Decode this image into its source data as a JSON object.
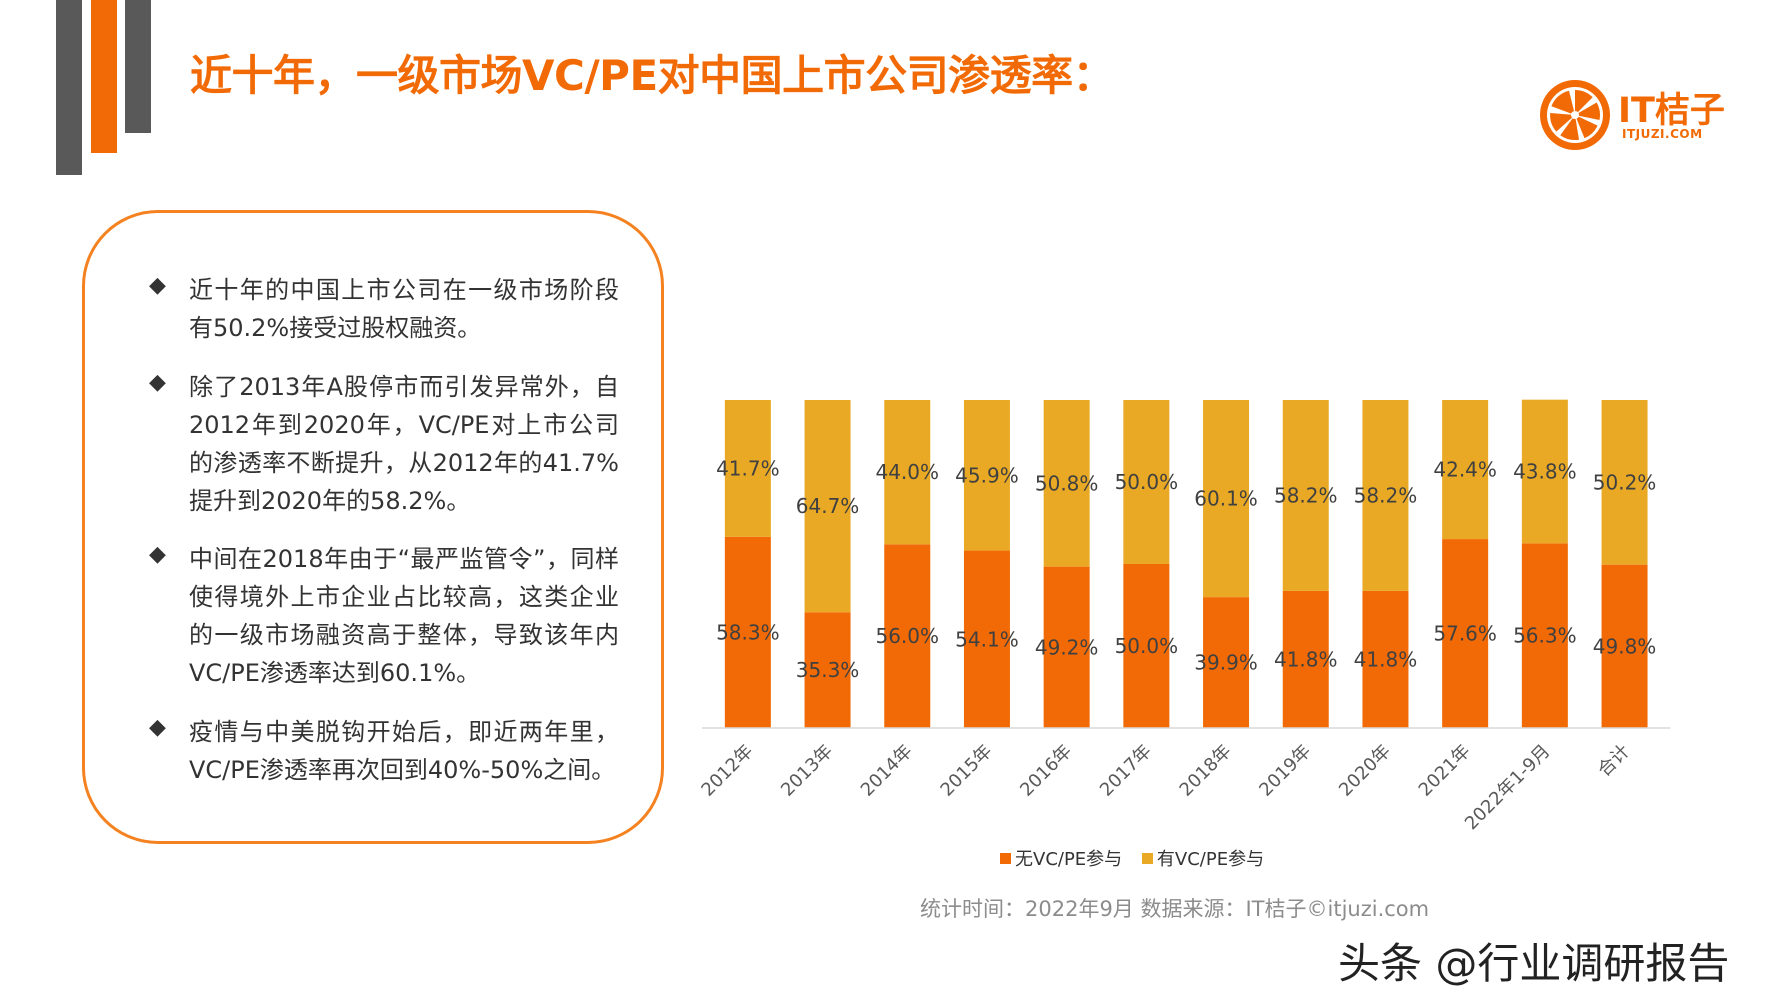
{
  "title": "近十年，一级市场VC/PE对中国上市公司渗透率：",
  "logo": {
    "text": "IT桔子",
    "sub": "ITJUZI.COM",
    "icon": "orange-slice-icon"
  },
  "summary": {
    "bullets": [
      "近十年的中国上市公司在一级市场阶段有50.2%接受过股权融资。",
      "除了2013年A股停市而引发异常外，自2012年到2020年，VC/PE对上市公司的渗透率不断提升，从2012年的41.7%提升到2020年的58.2%。",
      "中间在2018年由于“最严监管令”，同样使得境外上市企业占比较高，这类企业的一级市场融资高于整体，导致该年内VC/PE渗透率达到60.1%。",
      "疫情与中美脱钩开始后，即近两年里，VC/PE渗透率再次回到40%-50%之间。"
    ]
  },
  "chart_data": {
    "type": "bar",
    "stacked": true,
    "percent_stacked": true,
    "categories": [
      "2012年",
      "2013年",
      "2014年",
      "2015年",
      "2016年",
      "2017年",
      "2018年",
      "2019年",
      "2020年",
      "2021年",
      "2022年1-9月",
      "合计"
    ],
    "series": [
      {
        "name": "无VC/PE参与",
        "color": "#f26a05",
        "values": [
          58.3,
          35.3,
          56.0,
          54.1,
          49.2,
          50.0,
          39.9,
          41.8,
          41.8,
          57.6,
          56.3,
          49.8
        ],
        "labels": [
          "58.3%",
          "35.3%",
          "56.0%",
          "54.1%",
          "49.2%",
          "50.0%",
          "39.9%",
          "41.8%",
          "41.8%",
          "57.6%",
          "56.3%",
          "49.8%"
        ]
      },
      {
        "name": "有VC/PE参与",
        "color": "#e9a924",
        "values": [
          41.7,
          64.7,
          44.0,
          45.9,
          50.8,
          50.0,
          60.1,
          58.2,
          58.2,
          42.4,
          43.8,
          50.2
        ],
        "labels": [
          "41.7%",
          "64.7%",
          "44.0%",
          "45.9%",
          "50.8%",
          "50.0%",
          "60.1%",
          "58.2%",
          "58.2%",
          "42.4%",
          "43.8%",
          "50.2%"
        ]
      }
    ],
    "ylim": [
      0,
      100
    ],
    "grid": false,
    "legend_position": "bottom"
  },
  "source_note": "统计时间：2022年9月   数据来源：IT桔子©itjuzi.com",
  "watermark": "头条 @行业调研报告"
}
